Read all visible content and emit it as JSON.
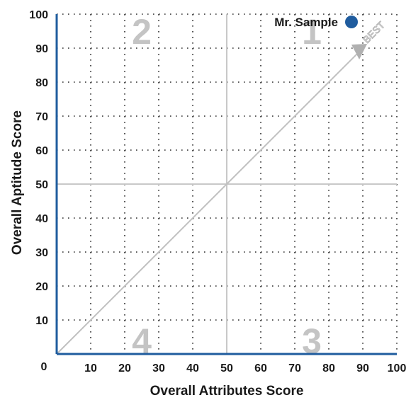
{
  "chart_data": {
    "type": "scatter",
    "xlabel": "Overall Attributes Score",
    "ylabel": "Overall Aptitude Score",
    "xlim": [
      0,
      100
    ],
    "ylim": [
      0,
      100
    ],
    "xticks": [
      "10",
      "20",
      "30",
      "40",
      "50",
      "60",
      "70",
      "80",
      "90",
      "100"
    ],
    "yticks": [
      "10",
      "20",
      "30",
      "40",
      "50",
      "60",
      "70",
      "80",
      "90",
      "100"
    ],
    "origin_label": "0",
    "grid": true,
    "quadrant_divider": [
      50,
      50
    ],
    "diagonal": {
      "from": [
        0,
        0
      ],
      "to": [
        90,
        90
      ],
      "label": "BEST"
    },
    "quadrant_labels": [
      {
        "text": "1",
        "x": 75,
        "y": 95
      },
      {
        "text": "2",
        "x": 25,
        "y": 95
      },
      {
        "text": "3",
        "x": 75,
        "y": 4
      },
      {
        "text": "4",
        "x": 25,
        "y": 4
      }
    ],
    "legend_position": "top-right",
    "series": [
      {
        "name": "Mr. Sample",
        "color": "#1f5c9e",
        "x": [],
        "y": []
      }
    ]
  },
  "colors": {
    "axis": "#1f5c9e",
    "grid": "#2a2a2a",
    "divider": "#c8c8c8",
    "marker": "#1f5c9e"
  }
}
